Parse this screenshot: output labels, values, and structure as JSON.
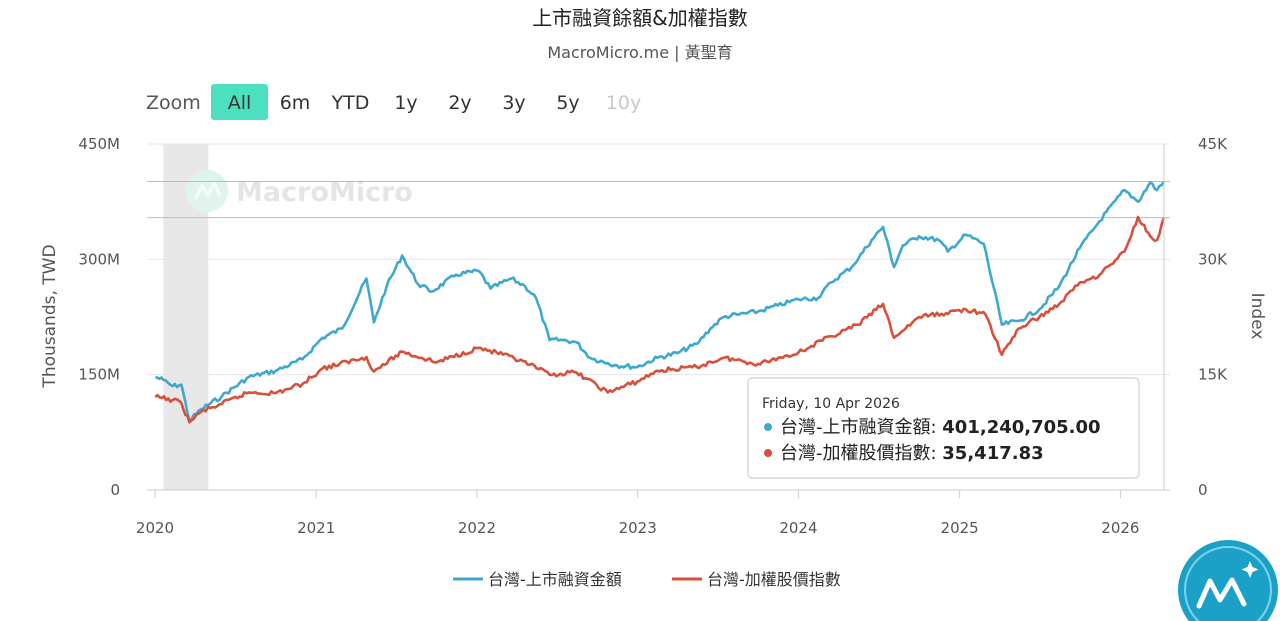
{
  "header": {
    "title": "上市融資餘額&加權指數",
    "subtitle": "MacroMicro.me | 黃聖育"
  },
  "zoom": {
    "label": "Zoom",
    "buttons": [
      {
        "label": "All",
        "active": true,
        "disabled": false
      },
      {
        "label": "6m",
        "active": false,
        "disabled": false
      },
      {
        "label": "YTD",
        "active": false,
        "disabled": false
      },
      {
        "label": "1y",
        "active": false,
        "disabled": false
      },
      {
        "label": "2y",
        "active": false,
        "disabled": false
      },
      {
        "label": "3y",
        "active": false,
        "disabled": false
      },
      {
        "label": "5y",
        "active": false,
        "disabled": false
      },
      {
        "label": "10y",
        "active": false,
        "disabled": true
      }
    ]
  },
  "watermark": {
    "text": "MacroMicro",
    "icon": "macromicro-logo-icon"
  },
  "colors": {
    "accent": "#4de0c0",
    "series_blue": "#3ea8cf",
    "series_red": "#d8503a",
    "badge": "#1ba0c8"
  },
  "chart_data": {
    "type": "line",
    "title": "上市融資餘額&加權指數",
    "subtitle": "MacroMicro.me | 黃聖育",
    "x_ticks": [
      "2020",
      "2021",
      "2022",
      "2023",
      "2024",
      "2025",
      "2026"
    ],
    "x_range": [
      "2020-01-01",
      "2026-04-10"
    ],
    "highlight_band": [
      "2020-01-20",
      "2020-05-01"
    ],
    "grid": true,
    "legend_position": "bottom-center",
    "y_left": {
      "label": "Thousands, TWD",
      "ticks": [
        "0",
        "150M",
        "300M",
        "450M"
      ],
      "range": [
        0,
        450000000
      ]
    },
    "y_right": {
      "label": "Index",
      "ticks": [
        "0",
        "15K",
        "30K",
        "45K"
      ],
      "range": [
        0,
        45000
      ]
    },
    "series": [
      {
        "name": "台灣-上市融資金額",
        "axis": "left",
        "color": "#3ea8cf",
        "points": [
          [
            "2020-01-02",
            147000000
          ],
          [
            "2020-01-20",
            143000000
          ],
          [
            "2020-02-10",
            135000000
          ],
          [
            "2020-03-01",
            137000000
          ],
          [
            "2020-03-19",
            90000000
          ],
          [
            "2020-04-15",
            105000000
          ],
          [
            "2020-06-01",
            122000000
          ],
          [
            "2020-08-01",
            147000000
          ],
          [
            "2020-10-01",
            155000000
          ],
          [
            "2020-12-01",
            170000000
          ],
          [
            "2021-01-15",
            198000000
          ],
          [
            "2021-03-01",
            210000000
          ],
          [
            "2021-04-25",
            275000000
          ],
          [
            "2021-05-12",
            218000000
          ],
          [
            "2021-06-10",
            265000000
          ],
          [
            "2021-07-15",
            305000000
          ],
          [
            "2021-08-20",
            268000000
          ],
          [
            "2021-09-20",
            258000000
          ],
          [
            "2021-11-15",
            280000000
          ],
          [
            "2022-01-05",
            285000000
          ],
          [
            "2022-02-01",
            262000000
          ],
          [
            "2022-03-20",
            275000000
          ],
          [
            "2022-04-20",
            265000000
          ],
          [
            "2022-05-15",
            250000000
          ],
          [
            "2022-06-15",
            195000000
          ],
          [
            "2022-07-15",
            195000000
          ],
          [
            "2022-08-15",
            192000000
          ],
          [
            "2022-09-15",
            172000000
          ],
          [
            "2022-10-25",
            165000000
          ],
          [
            "2022-11-15",
            162000000
          ],
          [
            "2022-12-31",
            160000000
          ],
          [
            "2023-02-15",
            172000000
          ],
          [
            "2023-04-01",
            178000000
          ],
          [
            "2023-05-15",
            190000000
          ],
          [
            "2023-06-15",
            210000000
          ],
          [
            "2023-07-15",
            225000000
          ],
          [
            "2023-08-15",
            228000000
          ],
          [
            "2023-10-01",
            232000000
          ],
          [
            "2023-11-15",
            240000000
          ],
          [
            "2024-01-01",
            248000000
          ],
          [
            "2024-02-15",
            250000000
          ],
          [
            "2024-03-15",
            270000000
          ],
          [
            "2024-05-01",
            290000000
          ],
          [
            "2024-06-15",
            325000000
          ],
          [
            "2024-07-11",
            342000000
          ],
          [
            "2024-08-05",
            290000000
          ],
          [
            "2024-08-25",
            318000000
          ],
          [
            "2024-10-01",
            330000000
          ],
          [
            "2024-11-15",
            325000000
          ],
          [
            "2024-12-05",
            310000000
          ],
          [
            "2025-01-15",
            332000000
          ],
          [
            "2025-02-25",
            320000000
          ],
          [
            "2025-04-07",
            215000000
          ],
          [
            "2025-05-15",
            220000000
          ],
          [
            "2025-07-01",
            235000000
          ],
          [
            "2025-08-15",
            265000000
          ],
          [
            "2025-10-01",
            315000000
          ],
          [
            "2025-11-15",
            350000000
          ],
          [
            "2026-01-10",
            390000000
          ],
          [
            "2026-02-10",
            375000000
          ],
          [
            "2026-03-10",
            400000000
          ],
          [
            "2026-03-25",
            390000000
          ],
          [
            "2026-04-10",
            401240705
          ]
        ]
      },
      {
        "name": "台灣-加權股價指數",
        "axis": "right",
        "color": "#d8503a",
        "points": [
          [
            "2020-01-02",
            12100
          ],
          [
            "2020-02-10",
            11700
          ],
          [
            "2020-03-01",
            11300
          ],
          [
            "2020-03-19",
            8800
          ],
          [
            "2020-04-15",
            10200
          ],
          [
            "2020-06-01",
            11200
          ],
          [
            "2020-08-01",
            12700
          ],
          [
            "2020-10-01",
            12600
          ],
          [
            "2020-12-01",
            13800
          ],
          [
            "2021-01-15",
            15800
          ],
          [
            "2021-04-25",
            17300
          ],
          [
            "2021-05-12",
            15400
          ],
          [
            "2021-07-15",
            18000
          ],
          [
            "2021-10-01",
            16600
          ],
          [
            "2022-01-05",
            18500
          ],
          [
            "2022-03-01",
            17600
          ],
          [
            "2022-05-01",
            16300
          ],
          [
            "2022-06-15",
            15000
          ],
          [
            "2022-08-15",
            15300
          ],
          [
            "2022-10-25",
            12700
          ],
          [
            "2022-12-31",
            14100
          ],
          [
            "2023-02-15",
            15500
          ],
          [
            "2023-05-15",
            16000
          ],
          [
            "2023-07-15",
            17200
          ],
          [
            "2023-10-01",
            16400
          ],
          [
            "2024-01-01",
            17900
          ],
          [
            "2024-03-15",
            20000
          ],
          [
            "2024-05-15",
            21500
          ],
          [
            "2024-07-11",
            24200
          ],
          [
            "2024-08-05",
            19800
          ],
          [
            "2024-10-01",
            22500
          ],
          [
            "2024-12-01",
            23000
          ],
          [
            "2025-01-15",
            23500
          ],
          [
            "2025-03-01",
            22800
          ],
          [
            "2025-04-07",
            17600
          ],
          [
            "2025-05-15",
            21000
          ],
          [
            "2025-07-01",
            22500
          ],
          [
            "2025-08-15",
            24200
          ],
          [
            "2025-10-01",
            27000
          ],
          [
            "2025-11-15",
            28000
          ],
          [
            "2026-01-10",
            31000
          ],
          [
            "2026-02-10",
            35500
          ],
          [
            "2026-03-10",
            33000
          ],
          [
            "2026-03-25",
            32500
          ],
          [
            "2026-04-10",
            35417.83
          ]
        ]
      }
    ]
  },
  "tooltip": {
    "date": "Friday, 10 Apr 2026",
    "rows": [
      {
        "series": "台灣-上市融資金額",
        "label": "台灣-上市融資金額: ",
        "value": "401,240,705.00",
        "color": "#3ea8cf"
      },
      {
        "series": "台灣-加權股價指數",
        "label": "台灣-加權股價指數: ",
        "value": "35,417.83",
        "color": "#d8503a"
      }
    ]
  }
}
